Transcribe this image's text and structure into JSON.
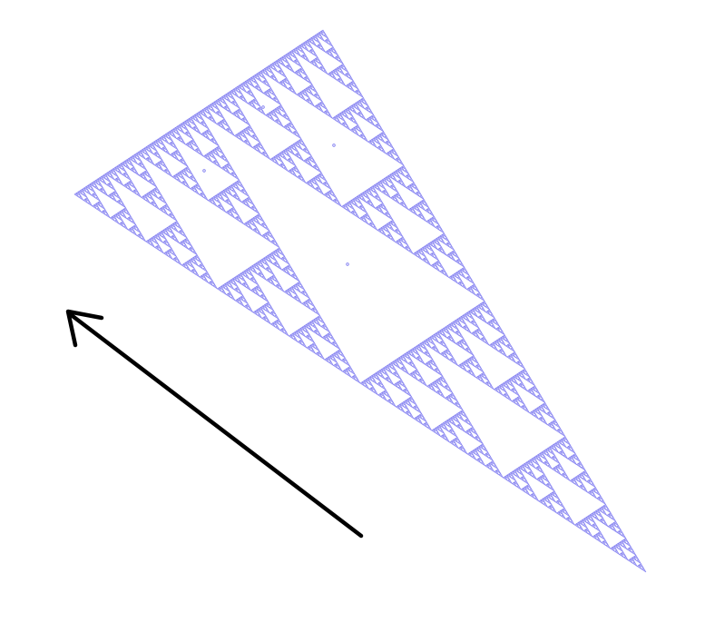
{
  "figure": {
    "shape": "sierpinski-triangle",
    "recursion_depth": 7,
    "fractal_color": "#7b78f0",
    "arrow_color": "#000000",
    "arrow_direction": "up-left",
    "stray_dot_count": 4
  }
}
